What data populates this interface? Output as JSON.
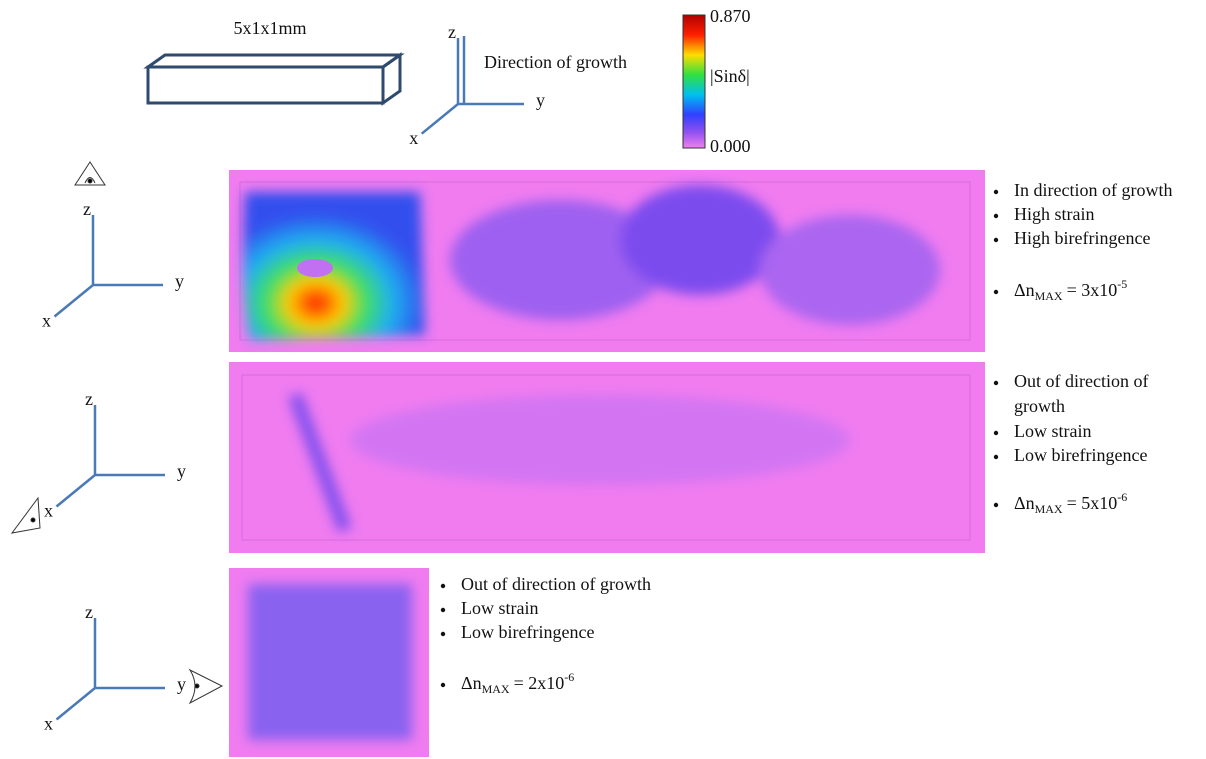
{
  "header": {
    "box_label": "5x1x1mm",
    "axis": {
      "z": "z",
      "y": "y",
      "x": "x"
    },
    "growth_label": "Direction of growth"
  },
  "colorbar": {
    "max": "0.870",
    "label": "|Sinδ|",
    "min": "0.000"
  },
  "panels": [
    {
      "axis": {
        "z": "z",
        "y": "y",
        "x": "x"
      },
      "bullets": [
        "In direction of growth",
        "High strain",
        "High birefringence"
      ],
      "delta": {
        "symbol": "Δn",
        "sub": "MAX",
        "eq": "= 3x10",
        "exp": "-5"
      }
    },
    {
      "axis": {
        "z": "z",
        "y": "y",
        "x": "x"
      },
      "bullets": [
        "Out of direction of",
        "growth",
        "Low strain",
        "Low birefringence"
      ],
      "delta": {
        "symbol": "Δn",
        "sub": "MAX",
        "eq": "= 5x10",
        "exp": "-6"
      }
    },
    {
      "axis": {
        "z": "z",
        "y": "y",
        "x": "x"
      },
      "bullets": [
        "Out of direction of growth",
        "Low strain",
        "Low birefringence"
      ],
      "delta": {
        "symbol": "Δn",
        "sub": "MAX",
        "eq": "= 2x10",
        "exp": "-6"
      }
    }
  ]
}
